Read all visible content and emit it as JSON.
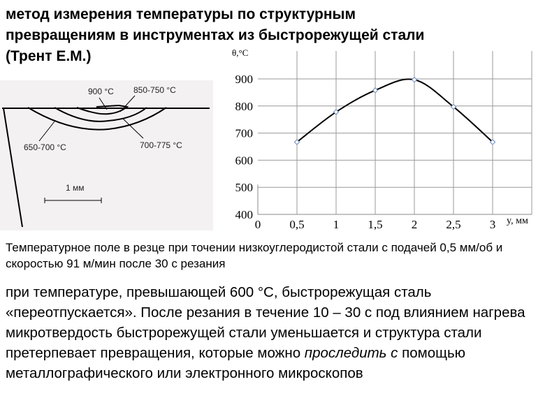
{
  "title": {
    "line1": "метод измерения температуры по структурным",
    "line2": "превращениям в инструментах из быстрорежущей стали",
    "line3": "(Трент Е.М.)"
  },
  "diagram": {
    "label_900": "900 °C",
    "label_850_750": "850-750 °C",
    "label_650_700": "650-700 °C",
    "label_700_775": "700-775 °C",
    "scale": "1 мм"
  },
  "chart_data": {
    "type": "line",
    "ylabel": "θ,°C",
    "xlabel": "y, мм",
    "x": [
      0.5,
      1,
      1.5,
      2,
      2.5,
      3
    ],
    "values": [
      667,
      778,
      858,
      897,
      797,
      667
    ],
    "xlim": [
      0,
      3.5
    ],
    "ylim": [
      400,
      950
    ],
    "xticks": [
      "0",
      "0,5",
      "1",
      "1,5",
      "2",
      "2,5",
      "3"
    ],
    "yticks": [
      "400",
      "500",
      "600",
      "700",
      "800",
      "900"
    ],
    "grid": true,
    "line_color": "#000000",
    "marker_color": "#6a86b8"
  },
  "caption": "Температурное поле в резце при точении низкоуглеродистой стали с подачей 0,5 мм/об и скоростью 91 м/мин после 30 с   резания",
  "body": {
    "p1": "при температуре, превышающей 600 °C, быстрорежущая сталь  «переотпускается». После резания в течение 10 – 30 с под влиянием нагрева микротвердость быстрорежущей стали уменьшается и структура стали претерпевает превращения, которые можно ",
    "em": "проследить с",
    "p2": " помощью металлографического или электронного микроскопов"
  }
}
